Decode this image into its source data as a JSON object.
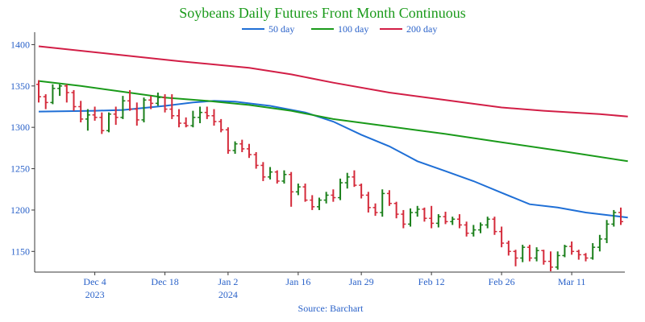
{
  "chart_data": {
    "type": "line",
    "title": "Soybeans Daily Futures Front Month Continuous",
    "source": "Source: Barchart",
    "ylim": [
      1125,
      1415
    ],
    "y_ticks": [
      1150,
      1200,
      1250,
      1300,
      1350,
      1400
    ],
    "x_ticks": [
      {
        "label": "Dec 4",
        "sub": "2023",
        "index": 8
      },
      {
        "label": "Dec 18",
        "sub": "",
        "index": 18
      },
      {
        "label": "Jan 2",
        "sub": "2024",
        "index": 27
      },
      {
        "label": "Jan 16",
        "sub": "",
        "index": 37
      },
      {
        "label": "Jan 29",
        "sub": "",
        "index": 46
      },
      {
        "label": "Feb 12",
        "sub": "",
        "index": 56
      },
      {
        "label": "Feb 26",
        "sub": "",
        "index": 66
      },
      {
        "label": "Mar 11",
        "sub": "",
        "index": 76
      }
    ],
    "n_sessions": 84,
    "grid": false,
    "legend_position": "top-center",
    "colors": {
      "title": "#1a9a1a",
      "axis_text": "#2a62c9",
      "up": "#1a7f1a",
      "down": "#d42a3a"
    },
    "series": [
      {
        "name": "50 day",
        "color": "#1f6fd6",
        "points": [
          [
            0,
            1319
          ],
          [
            8,
            1320
          ],
          [
            12,
            1321
          ],
          [
            18,
            1326
          ],
          [
            22,
            1330
          ],
          [
            25,
            1332
          ],
          [
            28,
            1331
          ],
          [
            33,
            1326
          ],
          [
            38,
            1318
          ],
          [
            42,
            1307
          ],
          [
            46,
            1291
          ],
          [
            50,
            1277
          ],
          [
            54,
            1259
          ],
          [
            58,
            1247
          ],
          [
            62,
            1235
          ],
          [
            66,
            1221
          ],
          [
            70,
            1207
          ],
          [
            74,
            1203
          ],
          [
            78,
            1197
          ],
          [
            82,
            1193
          ],
          [
            84,
            1191
          ]
        ]
      },
      {
        "name": "100 day",
        "color": "#1a9a1a",
        "points": [
          [
            0,
            1356
          ],
          [
            6,
            1350
          ],
          [
            12,
            1343
          ],
          [
            18,
            1336
          ],
          [
            24,
            1332
          ],
          [
            30,
            1327
          ],
          [
            36,
            1320
          ],
          [
            42,
            1310
          ],
          [
            50,
            1301
          ],
          [
            58,
            1292
          ],
          [
            66,
            1282
          ],
          [
            74,
            1272
          ],
          [
            84,
            1259
          ]
        ]
      },
      {
        "name": "200 day",
        "color": "#d21e46",
        "points": [
          [
            0,
            1398
          ],
          [
            10,
            1389
          ],
          [
            20,
            1380
          ],
          [
            30,
            1372
          ],
          [
            36,
            1364
          ],
          [
            42,
            1354
          ],
          [
            50,
            1342
          ],
          [
            58,
            1333
          ],
          [
            66,
            1324
          ],
          [
            72,
            1320
          ],
          [
            80,
            1316
          ],
          [
            84,
            1313
          ]
        ]
      }
    ],
    "ohlc": [
      [
        1352,
        1357,
        1330,
        1337
      ],
      [
        1337,
        1340,
        1322,
        1330
      ],
      [
        1330,
        1352,
        1328,
        1347
      ],
      [
        1347,
        1352,
        1338,
        1350
      ],
      [
        1350,
        1352,
        1330,
        1342
      ],
      [
        1342,
        1345,
        1320,
        1325
      ],
      [
        1325,
        1332,
        1306,
        1310
      ],
      [
        1310,
        1322,
        1296,
        1315
      ],
      [
        1315,
        1325,
        1308,
        1312
      ],
      [
        1312,
        1318,
        1292,
        1296
      ],
      [
        1296,
        1318,
        1294,
        1316
      ],
      [
        1316,
        1325,
        1303,
        1312
      ],
      [
        1312,
        1338,
        1310,
        1332
      ],
      [
        1332,
        1345,
        1320,
        1322
      ],
      [
        1322,
        1330,
        1302,
        1309
      ],
      [
        1309,
        1336,
        1306,
        1333
      ],
      [
        1333,
        1338,
        1322,
        1329
      ],
      [
        1329,
        1342,
        1326,
        1336
      ],
      [
        1336,
        1340,
        1318,
        1322
      ],
      [
        1322,
        1340,
        1310,
        1314
      ],
      [
        1314,
        1322,
        1300,
        1305
      ],
      [
        1305,
        1312,
        1300,
        1302
      ],
      [
        1302,
        1320,
        1300,
        1312
      ],
      [
        1312,
        1325,
        1305,
        1318
      ],
      [
        1318,
        1325,
        1310,
        1314
      ],
      [
        1314,
        1322,
        1302,
        1307
      ],
      [
        1307,
        1310,
        1294,
        1297
      ],
      [
        1297,
        1300,
        1268,
        1272
      ],
      [
        1272,
        1283,
        1268,
        1280
      ],
      [
        1280,
        1285,
        1270,
        1274
      ],
      [
        1274,
        1280,
        1263,
        1267
      ],
      [
        1267,
        1270,
        1250,
        1254
      ],
      [
        1254,
        1258,
        1235,
        1240
      ],
      [
        1240,
        1252,
        1237,
        1246
      ],
      [
        1246,
        1248,
        1232,
        1235
      ],
      [
        1235,
        1248,
        1232,
        1243
      ],
      [
        1243,
        1246,
        1204,
        1222
      ],
      [
        1222,
        1232,
        1218,
        1228
      ],
      [
        1228,
        1232,
        1210,
        1212
      ],
      [
        1212,
        1218,
        1200,
        1204
      ],
      [
        1204,
        1215,
        1200,
        1212
      ],
      [
        1212,
        1222,
        1208,
        1218
      ],
      [
        1218,
        1225,
        1210,
        1215
      ],
      [
        1215,
        1238,
        1212,
        1233
      ],
      [
        1233,
        1245,
        1226,
        1240
      ],
      [
        1240,
        1248,
        1228,
        1230
      ],
      [
        1230,
        1232,
        1214,
        1218
      ],
      [
        1218,
        1222,
        1197,
        1203
      ],
      [
        1203,
        1208,
        1193,
        1197
      ],
      [
        1197,
        1225,
        1192,
        1220
      ],
      [
        1220,
        1224,
        1205,
        1208
      ],
      [
        1208,
        1210,
        1190,
        1195
      ],
      [
        1195,
        1200,
        1178,
        1183
      ],
      [
        1183,
        1202,
        1180,
        1197
      ],
      [
        1197,
        1205,
        1192,
        1201
      ],
      [
        1201,
        1203,
        1186,
        1190
      ],
      [
        1190,
        1205,
        1178,
        1184
      ],
      [
        1184,
        1195,
        1179,
        1192
      ],
      [
        1192,
        1198,
        1183,
        1186
      ],
      [
        1186,
        1192,
        1182,
        1189
      ],
      [
        1189,
        1195,
        1178,
        1182
      ],
      [
        1182,
        1186,
        1168,
        1172
      ],
      [
        1172,
        1182,
        1168,
        1176
      ],
      [
        1176,
        1185,
        1172,
        1182
      ],
      [
        1182,
        1192,
        1178,
        1189
      ],
      [
        1189,
        1192,
        1170,
        1174
      ],
      [
        1174,
        1180,
        1155,
        1160
      ],
      [
        1160,
        1163,
        1145,
        1150
      ],
      [
        1150,
        1152,
        1132,
        1142
      ],
      [
        1142,
        1158,
        1137,
        1155
      ],
      [
        1155,
        1158,
        1138,
        1142
      ],
      [
        1142,
        1155,
        1138,
        1151
      ],
      [
        1151,
        1152,
        1134,
        1138
      ],
      [
        1138,
        1150,
        1126,
        1131
      ],
      [
        1131,
        1150,
        1128,
        1145
      ],
      [
        1145,
        1158,
        1143,
        1156
      ],
      [
        1156,
        1162,
        1146,
        1150
      ],
      [
        1150,
        1152,
        1140,
        1146
      ],
      [
        1146,
        1148,
        1138,
        1142
      ],
      [
        1142,
        1160,
        1140,
        1155
      ],
      [
        1155,
        1170,
        1150,
        1165
      ],
      [
        1165,
        1188,
        1160,
        1183
      ],
      [
        1183,
        1200,
        1180,
        1197
      ],
      [
        1197,
        1203,
        1182,
        1186
      ]
    ]
  }
}
